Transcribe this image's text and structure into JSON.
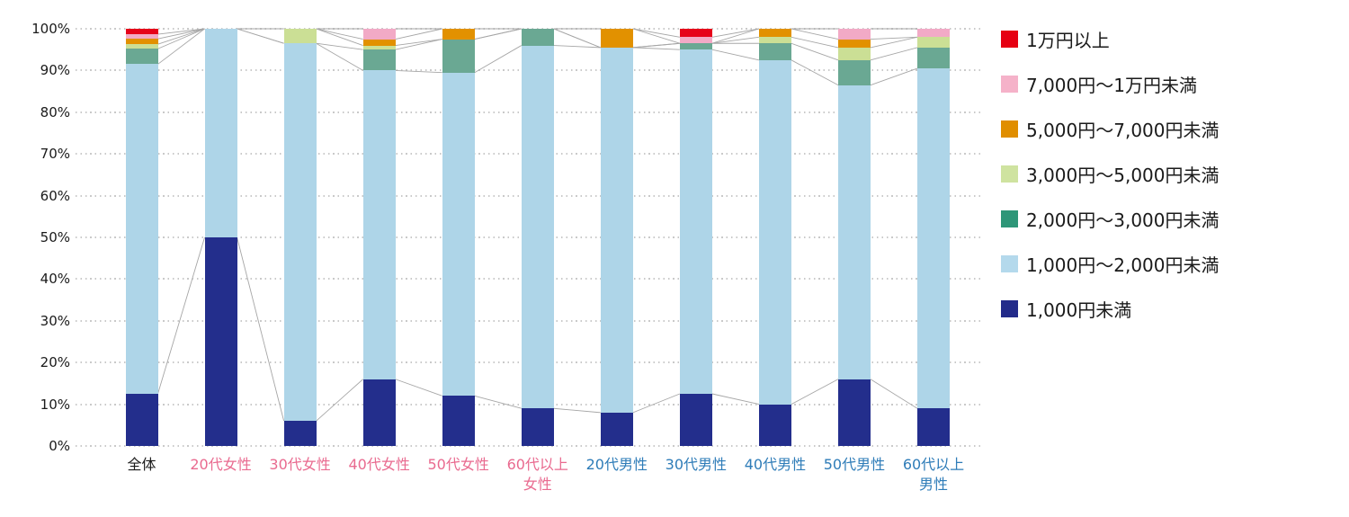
{
  "page": {
    "background": "#ffffff"
  },
  "chart_data": {
    "type": "bar",
    "variant": "stacked-100-percent",
    "title": "",
    "xlabel": "",
    "ylabel": "",
    "y_axis": {
      "min": 0,
      "max": 100,
      "step": 10,
      "tick_suffix": "%"
    },
    "grid": "dotted-horizontal",
    "legend_position": "right",
    "connector_lines": true,
    "connector_color": "#a6a6a6",
    "categories": [
      {
        "label": "全体",
        "lines": [
          "全体"
        ],
        "color": "#1a1a1a"
      },
      {
        "label": "20代女性",
        "lines": [
          "20代女性"
        ],
        "color": "#e96a8f"
      },
      {
        "label": "30代女性",
        "lines": [
          "30代女性"
        ],
        "color": "#e96a8f"
      },
      {
        "label": "40代女性",
        "lines": [
          "40代女性"
        ],
        "color": "#e96a8f"
      },
      {
        "label": "50代女性",
        "lines": [
          "50代女性"
        ],
        "color": "#e96a8f"
      },
      {
        "label": "60代以上女性",
        "lines": [
          "60代以上",
          "女性"
        ],
        "color": "#e96a8f"
      },
      {
        "label": "20代男性",
        "lines": [
          "20代男性"
        ],
        "color": "#2e7cb8"
      },
      {
        "label": "30代男性",
        "lines": [
          "30代男性"
        ],
        "color": "#2e7cb8"
      },
      {
        "label": "40代男性",
        "lines": [
          "40代男性"
        ],
        "color": "#2e7cb8"
      },
      {
        "label": "50代男性",
        "lines": [
          "50代男性"
        ],
        "color": "#2e7cb8"
      },
      {
        "label": "60代以上男性",
        "lines": [
          "60代以上",
          "男性"
        ],
        "color": "#2e7cb8"
      }
    ],
    "series": [
      {
        "name": "1万円以上",
        "color": "#e60012",
        "bar_color": "#e6021a",
        "values": [
          1.3,
          0,
          0,
          0,
          0,
          0,
          0,
          2,
          0,
          0,
          0
        ]
      },
      {
        "name": "7,000円〜1万円未満",
        "color": "#f5b2c9",
        "bar_color": "#f2aac6",
        "values": [
          1.1,
          0,
          0,
          2.5,
          0,
          0,
          0,
          1.5,
          0,
          2.5,
          2
        ]
      },
      {
        "name": "5,000円〜7,000円未満",
        "color": "#e08e00",
        "bar_color": "#e29100",
        "values": [
          1.3,
          0,
          0,
          1.5,
          2.5,
          0,
          4.5,
          0,
          2,
          2,
          0
        ]
      },
      {
        "name": "3,000円〜5,000円未満",
        "color": "#cfe3a0",
        "bar_color": "#cbdf95",
        "values": [
          1.1,
          0,
          3.5,
          1,
          0,
          0,
          0,
          0,
          1.5,
          3,
          2.5
        ]
      },
      {
        "name": "2,000円〜3,000円未満",
        "color": "#2e9678",
        "bar_color": "#6aa893",
        "values": [
          3.7,
          0,
          0,
          5,
          8,
          4,
          0,
          1.5,
          4,
          6,
          5
        ]
      },
      {
        "name": "1,000円〜2,000円未満",
        "color": "#b4d9ec",
        "bar_color": "#aed5e8",
        "values": [
          79.0,
          50,
          90.5,
          74,
          77.5,
          87,
          87.5,
          82.5,
          82.5,
          70.5,
          81.5
        ]
      },
      {
        "name": "1,000円未満",
        "color": "#232b8a",
        "bar_color": "#232e8c",
        "values": [
          12.5,
          50,
          6,
          16,
          12,
          9,
          8,
          12.5,
          10,
          16,
          9
        ]
      }
    ]
  }
}
